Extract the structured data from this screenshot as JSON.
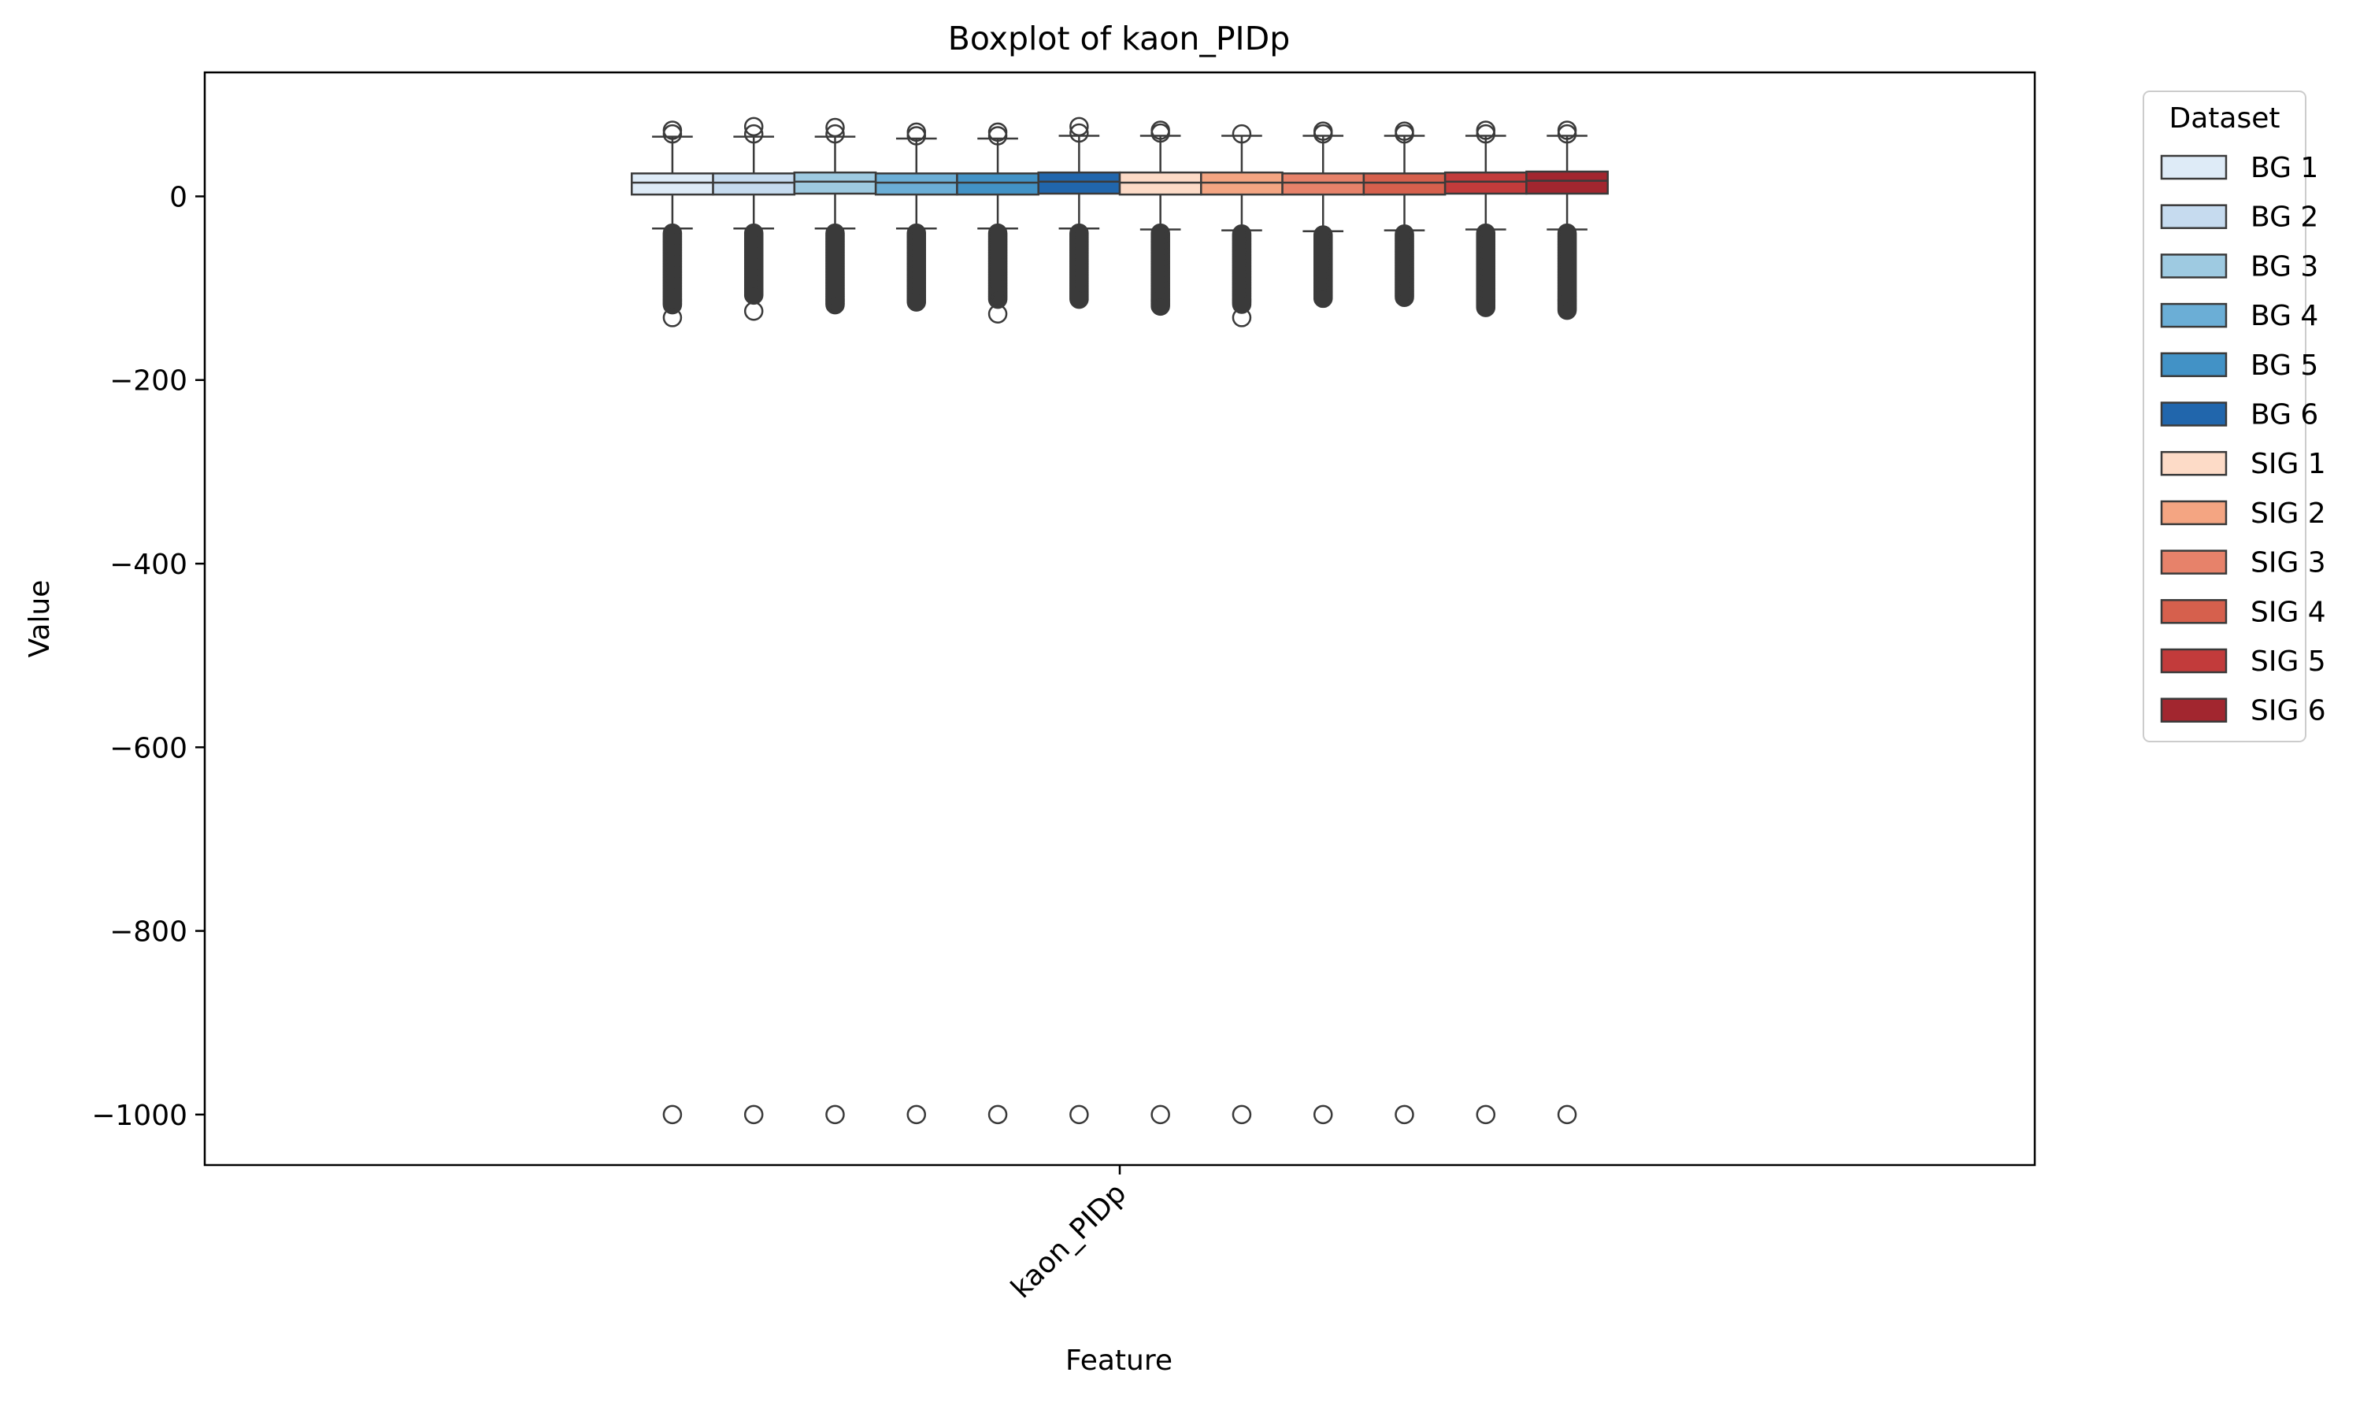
{
  "chart_data": {
    "type": "boxplot",
    "title": "Boxplot of kaon_PIDp",
    "xlabel": "Feature",
    "ylabel": "Value",
    "categories": [
      "kaon_PIDp"
    ],
    "ylim": [
      -1055,
      135
    ],
    "yticks": [
      0,
      -200,
      -400,
      -600,
      -800,
      -1000
    ],
    "ytick_labels": [
      "0",
      "−200",
      "−400",
      "−600",
      "−800",
      "−1000"
    ],
    "legend": {
      "title": "Dataset",
      "position": "outside-right"
    },
    "grid": false,
    "series": [
      {
        "name": "BG 1",
        "color": "#deebf7",
        "q1": 2,
        "median": 15,
        "q3": 25,
        "whisker_low": -35,
        "whisker_high": 65,
        "outliers_high": [
          68,
          72
        ],
        "outliers_low_range": [
          -40,
          -118
        ],
        "extreme_outliers": [
          -132,
          -1000
        ]
      },
      {
        "name": "BG 2",
        "color": "#c6dbef",
        "q1": 2,
        "median": 15,
        "q3": 25,
        "whisker_low": -35,
        "whisker_high": 65,
        "outliers_high": [
          68,
          76
        ],
        "outliers_low_range": [
          -40,
          -108
        ],
        "extreme_outliers": [
          -125,
          -1000
        ]
      },
      {
        "name": "BG 3",
        "color": "#9ecae1",
        "q1": 3,
        "median": 16,
        "q3": 26,
        "whisker_low": -35,
        "whisker_high": 65,
        "outliers_high": [
          68,
          75
        ],
        "outliers_low_range": [
          -40,
          -118
        ],
        "extreme_outliers": [
          -1000
        ]
      },
      {
        "name": "BG 4",
        "color": "#6baed6",
        "q1": 2,
        "median": 15,
        "q3": 25,
        "whisker_low": -35,
        "whisker_high": 63,
        "outliers_high": [
          66,
          70
        ],
        "outliers_low_range": [
          -40,
          -115
        ],
        "extreme_outliers": [
          -1000
        ]
      },
      {
        "name": "BG 5",
        "color": "#4292c6",
        "q1": 2,
        "median": 15,
        "q3": 25,
        "whisker_low": -35,
        "whisker_high": 63,
        "outliers_high": [
          66,
          70
        ],
        "outliers_low_range": [
          -40,
          -112
        ],
        "extreme_outliers": [
          -128,
          -1000
        ]
      },
      {
        "name": "BG 6",
        "color": "#2166ac",
        "q1": 3,
        "median": 16,
        "q3": 26,
        "whisker_low": -35,
        "whisker_high": 66,
        "outliers_high": [
          69,
          76
        ],
        "outliers_low_range": [
          -40,
          -113
        ],
        "extreme_outliers": [
          -1000
        ]
      },
      {
        "name": "SIG 1",
        "color": "#fddbc7",
        "q1": 2,
        "median": 15,
        "q3": 26,
        "whisker_low": -36,
        "whisker_high": 66,
        "outliers_high": [
          69,
          72
        ],
        "outliers_low_range": [
          -40,
          -120
        ],
        "extreme_outliers": [
          -1000
        ]
      },
      {
        "name": "SIG 2",
        "color": "#f4a582",
        "q1": 2,
        "median": 15,
        "q3": 26,
        "whisker_low": -37,
        "whisker_high": 66,
        "outliers_high": [
          68
        ],
        "outliers_low_range": [
          -41,
          -118
        ],
        "extreme_outliers": [
          -132,
          -1000
        ]
      },
      {
        "name": "SIG 3",
        "color": "#e7826a",
        "q1": 2,
        "median": 15,
        "q3": 25,
        "whisker_low": -38,
        "whisker_high": 66,
        "outliers_high": [
          68,
          71
        ],
        "outliers_low_range": [
          -42,
          -112
        ],
        "extreme_outliers": [
          -1000
        ]
      },
      {
        "name": "SIG 4",
        "color": "#d6604d",
        "q1": 2,
        "median": 15,
        "q3": 25,
        "whisker_low": -37,
        "whisker_high": 66,
        "outliers_high": [
          68,
          71
        ],
        "outliers_low_range": [
          -41,
          -110
        ],
        "extreme_outliers": [
          -1000
        ]
      },
      {
        "name": "SIG 5",
        "color": "#c23b3b",
        "q1": 3,
        "median": 16,
        "q3": 26,
        "whisker_low": -36,
        "whisker_high": 66,
        "outliers_high": [
          68,
          72
        ],
        "outliers_low_range": [
          -40,
          -122
        ],
        "extreme_outliers": [
          -1000
        ]
      },
      {
        "name": "SIG 6",
        "color": "#a2262f",
        "q1": 3,
        "median": 17,
        "q3": 27,
        "whisker_low": -36,
        "whisker_high": 66,
        "outliers_high": [
          68,
          72
        ],
        "outliers_low_range": [
          -40,
          -125
        ],
        "extreme_outliers": [
          -1000
        ]
      }
    ]
  }
}
